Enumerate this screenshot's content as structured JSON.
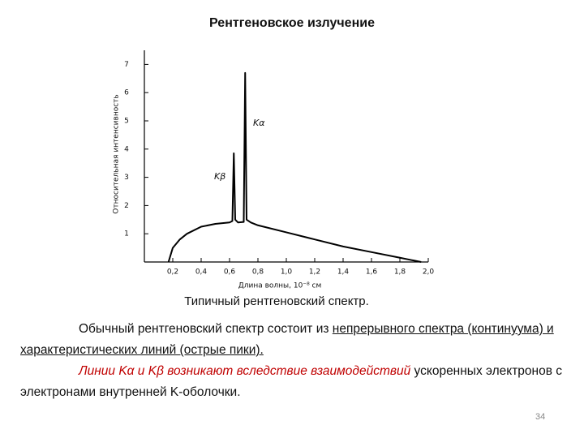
{
  "title": "Рентгеновское излучение",
  "chart_data": {
    "type": "line",
    "x_label": "Длина волны, 10⁻⁸ см",
    "y_label": "Относительная интенсивность",
    "annotations": [
      "Kα",
      "Kβ"
    ],
    "x": [
      0.17,
      0.2,
      0.25,
      0.3,
      0.4,
      0.5,
      0.6,
      0.62,
      0.63,
      0.64,
      0.66,
      0.7,
      0.71,
      0.72,
      0.75,
      0.8,
      1.0,
      1.2,
      1.4,
      1.6,
      1.8,
      1.9,
      1.95
    ],
    "series": [
      {
        "color": "#000000",
        "values": [
          0,
          0.5,
          0.8,
          1.0,
          1.25,
          1.35,
          1.4,
          1.45,
          3.85,
          1.5,
          1.4,
          1.42,
          6.7,
          1.5,
          1.4,
          1.3,
          1.05,
          0.8,
          0.55,
          0.35,
          0.15,
          0.05,
          0
        ]
      }
    ],
    "xlim": [
      0,
      2.0
    ],
    "xticks": [
      {
        "value": 0.2,
        "label": "0,2"
      },
      {
        "value": 0.4,
        "label": "0,4"
      },
      {
        "value": 0.6,
        "label": "0,6"
      },
      {
        "value": 0.8,
        "label": "0,8"
      },
      {
        "value": 1.0,
        "label": "1,0"
      },
      {
        "value": 1.2,
        "label": "1,2"
      },
      {
        "value": 1.4,
        "label": "1,4"
      },
      {
        "value": 1.6,
        "label": "1,6"
      },
      {
        "value": 1.8,
        "label": "1,8"
      },
      {
        "value": 2.0,
        "label": "2,0"
      }
    ],
    "ylim": [
      0,
      7.5
    ],
    "yticks": [
      1,
      2,
      3,
      4,
      5,
      6,
      7
    ],
    "grid": false
  },
  "caption": "Типичный рентгеновский спектр.",
  "paragraphs": [
    [
      "Обычный рентгеновский спектр состоит из ",
      "непрерывного спектра (континуума) и характеристических линий (острые пики)."
    ],
    [
      "Линии Kα и Kβ возникают вследствие взаимодействий",
      " ускоренных электронов с электронами внутренней K-оболочки."
    ]
  ],
  "page_number": "34"
}
